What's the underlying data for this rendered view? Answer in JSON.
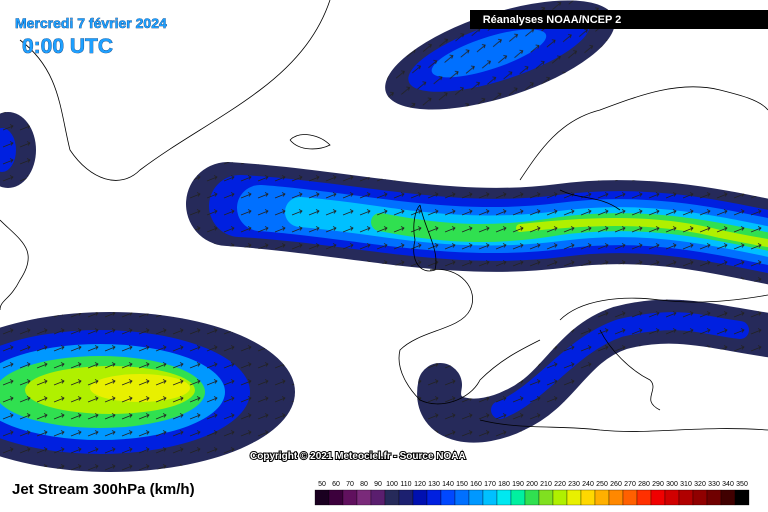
{
  "header": {
    "date": "Mercredi 7 février 2024",
    "time": "0:00 UTC",
    "source": "Réanalyses NOAA/NCEP 2"
  },
  "footer": {
    "copyright": "Copyright © 2021 Meteociel.fr - Source NOAA",
    "title": "Jet Stream 300hPa (km/h)"
  },
  "legend": {
    "labels": [
      50,
      60,
      70,
      80,
      90,
      100,
      110,
      120,
      130,
      140,
      150,
      160,
      170,
      180,
      190,
      200,
      210,
      220,
      230,
      240,
      250,
      260,
      270,
      280,
      290,
      300,
      310,
      320,
      330,
      340,
      350
    ],
    "colors": [
      "#1a0020",
      "#3c003c",
      "#60105e",
      "#7a2a7a",
      "#5a1e6e",
      "#262a5a",
      "#1c2070",
      "#0010b0",
      "#0020e0",
      "#0048ff",
      "#0070ff",
      "#0098ff",
      "#00c0ff",
      "#00e8f0",
      "#00f0a0",
      "#30e050",
      "#80e020",
      "#b0f000",
      "#e8f000",
      "#ffd800",
      "#ffb000",
      "#ff8800",
      "#ff6000",
      "#ff3000",
      "#f00000",
      "#d00000",
      "#b00000",
      "#900000",
      "#700000",
      "#400000",
      "#000000"
    ]
  }
}
